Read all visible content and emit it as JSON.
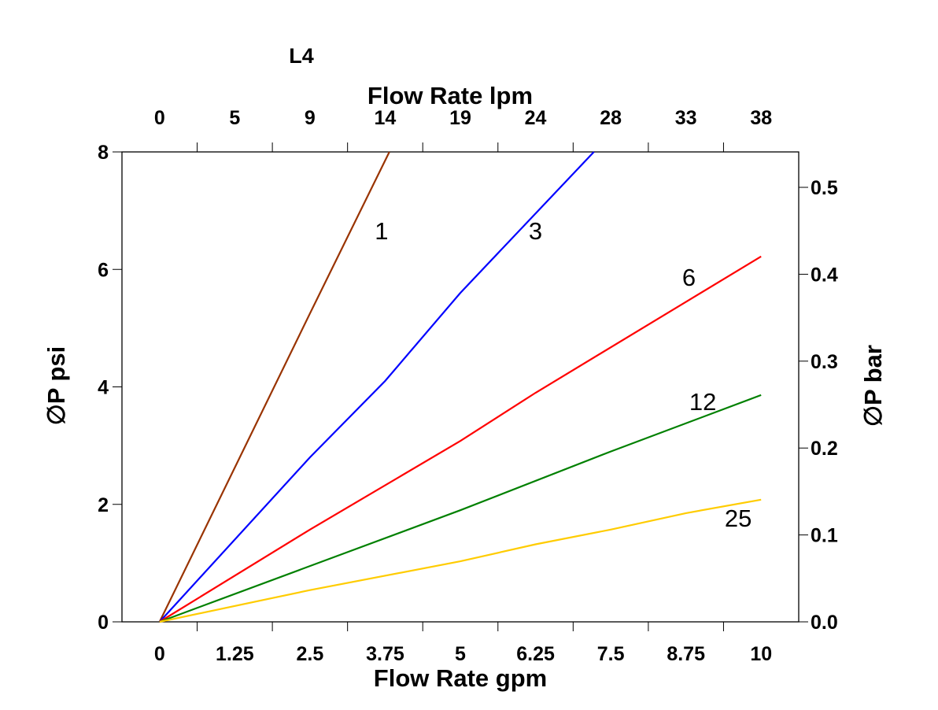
{
  "chart_data": {
    "type": "line",
    "title": "L4",
    "xlabel": "Flow Rate gpm",
    "x2label": "Flow Rate lpm",
    "ylabel": "∅P psi",
    "y2label": "∅P bar",
    "xlim": [
      -0.625,
      10.625
    ],
    "ylim": [
      0,
      8
    ],
    "y2lim": [
      0,
      0.54
    ],
    "grid": false,
    "x_ticks": [
      "0",
      "1.25",
      "2.5",
      "3.75",
      "5",
      "6.25",
      "7.5",
      "8.75",
      "10"
    ],
    "x_tick_values": [
      0,
      1.25,
      2.5,
      3.75,
      5,
      6.25,
      7.5,
      8.75,
      10
    ],
    "x2_ticks": [
      "0",
      "5",
      "9",
      "14",
      "19",
      "24",
      "28",
      "33",
      "38"
    ],
    "y_ticks": [
      "0",
      "2",
      "4",
      "6",
      "8"
    ],
    "y_tick_values": [
      0,
      2,
      4,
      6,
      8
    ],
    "y2_ticks": [
      "0.0",
      "0.1",
      "0.2",
      "0.3",
      "0.4",
      "0.5"
    ],
    "y2_tick_values": [
      0,
      0.1,
      0.2,
      0.3,
      0.4,
      0.5
    ],
    "series": [
      {
        "name": "1",
        "color": "#993300",
        "points": [
          [
            0,
            0
          ],
          [
            2.5,
            5.25
          ],
          [
            3.82,
            8
          ]
        ],
        "label_at": [
          3.69,
          6.66
        ]
      },
      {
        "name": "3",
        "color": "#0000ff",
        "points": [
          [
            0,
            0
          ],
          [
            2.5,
            2.8
          ],
          [
            3.75,
            4.1
          ],
          [
            5,
            5.6
          ],
          [
            7.22,
            8
          ]
        ],
        "label_at": [
          6.25,
          6.66
        ]
      },
      {
        "name": "6",
        "color": "#ff0000",
        "points": [
          [
            0,
            0
          ],
          [
            2.5,
            1.57
          ],
          [
            5,
            3.08
          ],
          [
            6.25,
            3.9
          ],
          [
            10,
            6.22
          ]
        ],
        "label_at": [
          8.8,
          5.87
        ]
      },
      {
        "name": "12",
        "color": "#008000",
        "points": [
          [
            0,
            0
          ],
          [
            5,
            1.9
          ],
          [
            7.5,
            2.9
          ],
          [
            10,
            3.86
          ]
        ],
        "label_at": [
          9.03,
          3.75
        ]
      },
      {
        "name": "25",
        "color": "#ffcc00",
        "points": [
          [
            0,
            0
          ],
          [
            2.5,
            0.54
          ],
          [
            5,
            1.03
          ],
          [
            6.25,
            1.32
          ],
          [
            7.5,
            1.57
          ],
          [
            8.75,
            1.85
          ],
          [
            10,
            2.08
          ]
        ],
        "label_at": [
          9.62,
          1.77
        ]
      }
    ]
  }
}
